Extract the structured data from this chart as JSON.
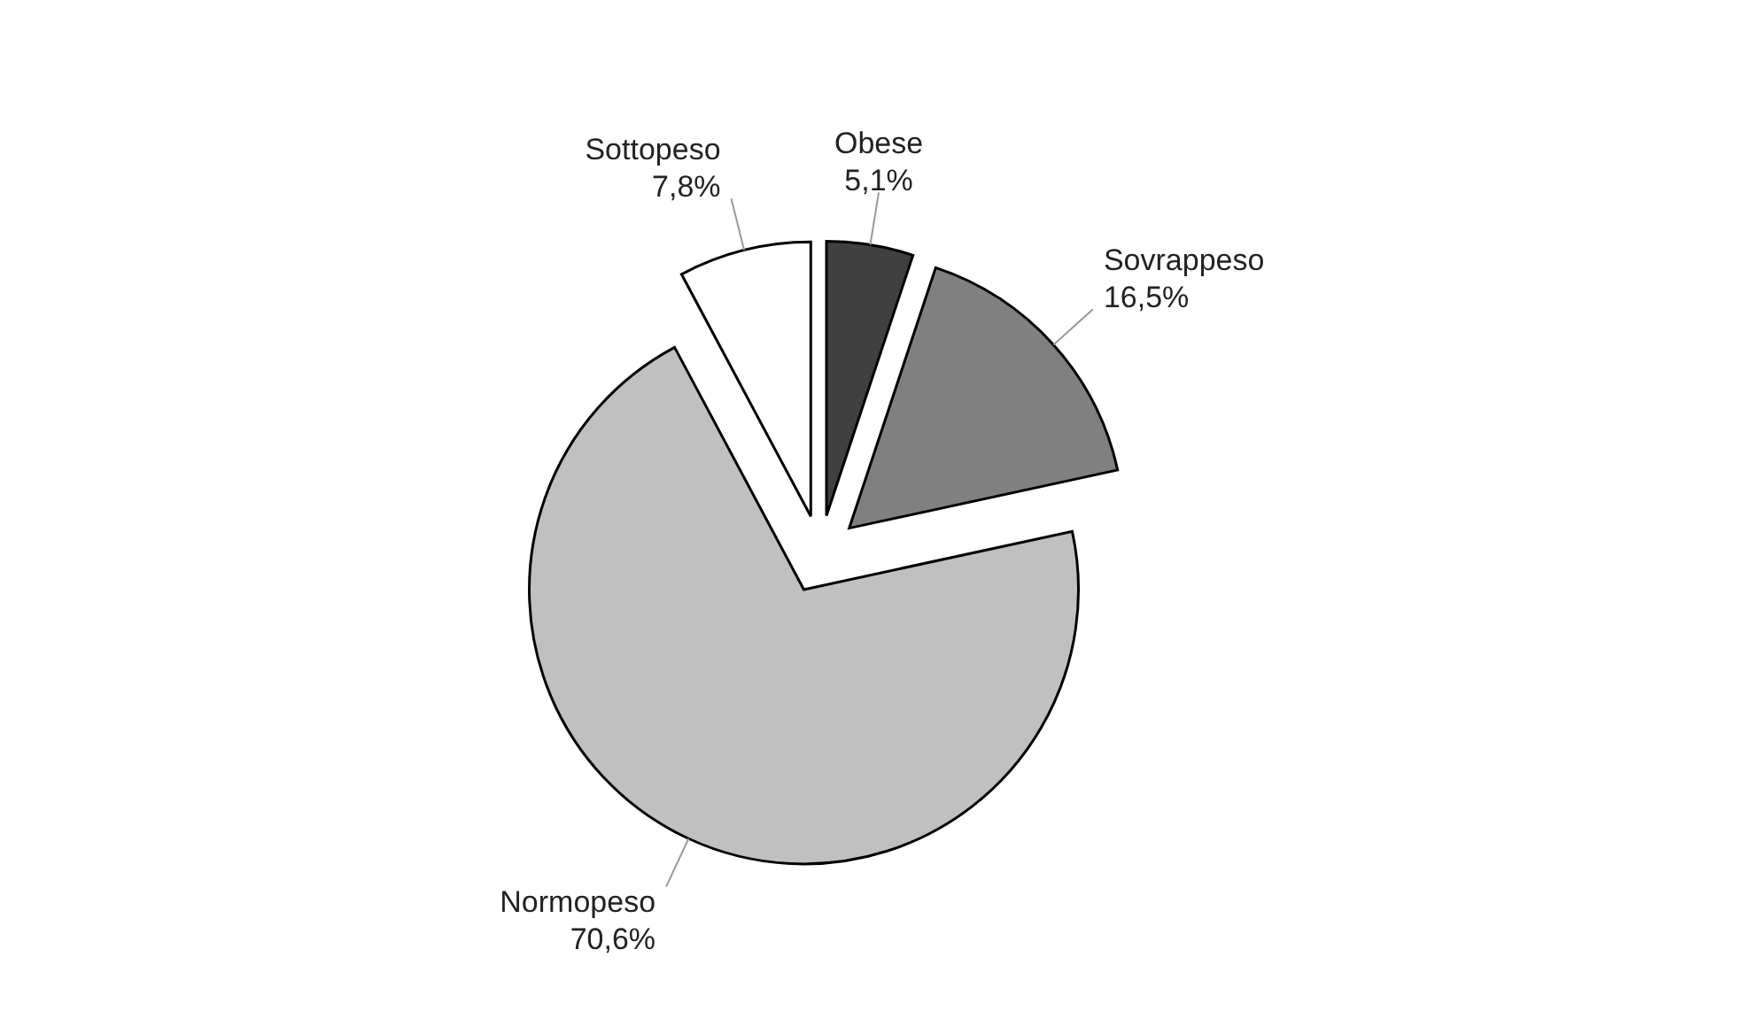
{
  "chart_data": {
    "type": "pie",
    "categories": [
      "Obese",
      "Sovrappeso",
      "Normopeso",
      "Sottopeso"
    ],
    "values": [
      5.1,
      16.5,
      70.6,
      7.8
    ],
    "colors": [
      "#404040",
      "#808080",
      "#c0c0c0",
      "#ffffff"
    ],
    "value_labels": [
      "5,1%",
      "16,5%",
      "70,6%",
      "7,8%"
    ],
    "legend": false
  }
}
